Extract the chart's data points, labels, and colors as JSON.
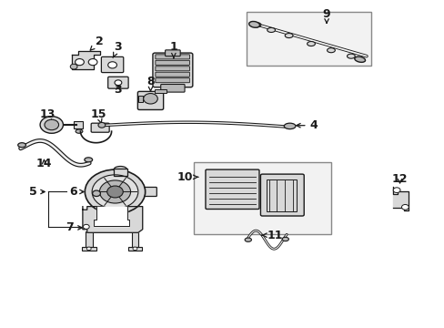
{
  "background_color": "#ffffff",
  "figsize": [
    4.89,
    3.6
  ],
  "dpi": 100,
  "line_color": "#1a1a1a",
  "label_fontsize": 9,
  "gray_light": "#d8d8d8",
  "gray_mid": "#b8b8b8",
  "gray_dark": "#888888",
  "box_fill": "#f2f2f2",
  "labels": {
    "1": [
      0.398,
      0.838,
      0.398,
      0.87
    ],
    "2": [
      0.23,
      0.858,
      0.23,
      0.878
    ],
    "3a": [
      0.272,
      0.852,
      0.272,
      0.875
    ],
    "3b": [
      0.272,
      0.748,
      0.272,
      0.728
    ],
    "4": [
      0.672,
      0.592,
      0.71,
      0.592
    ],
    "5": [
      0.105,
      0.388,
      0.078,
      0.388
    ],
    "6": [
      0.192,
      0.388,
      0.165,
      0.388
    ],
    "7": [
      0.175,
      0.298,
      0.148,
      0.298
    ],
    "8": [
      0.348,
      0.738,
      0.348,
      0.76
    ],
    "9": [
      0.735,
      0.948,
      0.735,
      0.928
    ],
    "10": [
      0.445,
      0.468,
      0.415,
      0.468
    ],
    "11": [
      0.628,
      0.298,
      0.6,
      0.298
    ],
    "12": [
      0.908,
      0.448,
      0.908,
      0.428
    ],
    "13": [
      0.112,
      0.642,
      0.112,
      0.665
    ],
    "14": [
      0.095,
      0.525,
      0.095,
      0.505
    ],
    "15": [
      0.228,
      0.638,
      0.228,
      0.66
    ]
  }
}
